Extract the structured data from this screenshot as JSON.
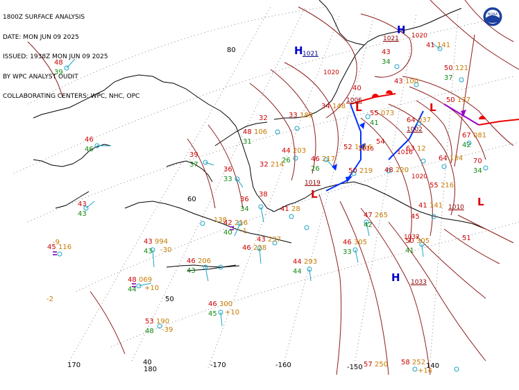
{
  "header": {
    "line1": "1800Z SURFACE ANALYSIS",
    "line2": "DATE: MON JUN 09 2025",
    "line3": "ISSUED: 1938Z MON JUN 09 2025",
    "line4": "BY WPC ANALYST OUDIT",
    "line5": "COLLABORATING CENTERS: WPC, NHC, OPC"
  },
  "graticule": {
    "lat80": "80",
    "lat60": "60",
    "lat50": "50",
    "lon170w": "-170",
    "lon160w": "-160",
    "lon150w": "-150",
    "lon140w": "-140",
    "lon180": "180",
    "lon170e": "170",
    "lon40": "40",
    "lon140": "140"
  },
  "pressure_centers": [
    {
      "type": "H",
      "value": "1021",
      "id": "h1"
    },
    {
      "type": "H",
      "value": "1021",
      "id": "h2"
    },
    {
      "type": "H",
      "value": "1033",
      "id": "h3"
    },
    {
      "type": "L",
      "value": "1006",
      "id": "l1"
    },
    {
      "type": "L",
      "value": "1019",
      "id": "l2"
    },
    {
      "type": "L",
      "value": "1002",
      "id": "l3"
    },
    {
      "type": "L",
      "value": "1010",
      "id": "l4"
    }
  ],
  "isobar_labels": [
    "1020",
    "1020",
    "1016",
    "1016",
    "1020",
    "1032"
  ],
  "stations": [
    {
      "t": "48",
      "d": "39",
      "p": ""
    },
    {
      "t": "46",
      "d": "46",
      "p": ""
    },
    {
      "t": "43",
      "d": "43",
      "p": ""
    },
    {
      "t": "45",
      "d": "",
      "p": "116"
    },
    {
      "t": "43",
      "d": "43",
      "p": "994",
      "tend": "-30"
    },
    {
      "t": "48",
      "d": "44",
      "p": "069",
      "tend": "+10"
    },
    {
      "t": "53",
      "d": "48",
      "p": "190",
      "tend": "-39"
    },
    {
      "t": "46",
      "d": "45",
      "p": "300",
      "tend": "+10"
    },
    {
      "t": "46",
      "d": "43",
      "p": "206"
    },
    {
      "t": "46",
      "d": "",
      "p": "228"
    },
    {
      "t": "43",
      "d": "",
      "p": "237"
    },
    {
      "t": "",
      "d": "",
      "p": "138"
    },
    {
      "t": "42",
      "d": "40",
      "p": "216",
      "tend": "-1"
    },
    {
      "t": "39",
      "d": "37",
      "p": ""
    },
    {
      "t": "36",
      "d": "33",
      "p": ""
    },
    {
      "t": "36",
      "d": "34",
      "p": ""
    },
    {
      "t": "38",
      "d": "",
      "p": ""
    },
    {
      "t": "41",
      "d": "",
      "p": "28"
    },
    {
      "t": "44",
      "d": "44",
      "p": "293"
    },
    {
      "t": "46",
      "d": "33",
      "p": "305"
    },
    {
      "t": "47",
      "d": "42",
      "p": "265"
    },
    {
      "t": "50",
      "d": "41",
      "p": "305"
    },
    {
      "t": "57",
      "d": "",
      "p": "250"
    },
    {
      "t": "58",
      "d": "",
      "p": "252",
      "tend": "+14"
    },
    {
      "t": "32",
      "d": "",
      "p": ""
    },
    {
      "t": "33",
      "d": "",
      "p": "185"
    },
    {
      "t": "48",
      "d": "31",
      "p": "106"
    },
    {
      "t": "44",
      "d": "26",
      "p": "203"
    },
    {
      "t": "46",
      "d": "26",
      "p": "217"
    },
    {
      "t": "50",
      "d": "",
      "p": "219"
    },
    {
      "t": "48",
      "d": "",
      "p": "220"
    },
    {
      "t": "52",
      "d": "",
      "p": "1016"
    },
    {
      "t": "54",
      "d": "",
      "p": ""
    },
    {
      "t": "55",
      "d": "41",
      "p": "073"
    },
    {
      "t": "64",
      "d": "",
      "p": "037"
    },
    {
      "t": "34",
      "d": "",
      "p": "148"
    },
    {
      "t": "40",
      "d": "",
      "p": ""
    },
    {
      "t": "43",
      "d": "34",
      "p": ""
    },
    {
      "t": "43",
      "d": "",
      "p": "100"
    },
    {
      "t": "41",
      "d": "",
      "p": "141"
    },
    {
      "t": "50",
      "d": "37",
      "p": "121"
    },
    {
      "t": "50",
      "d": "",
      "p": "137"
    },
    {
      "t": "67",
      "d": "42",
      "p": "081"
    },
    {
      "t": "70",
      "d": "34",
      "p": ""
    },
    {
      "t": "64",
      "d": "",
      "p": "134"
    },
    {
      "t": "63",
      "d": "",
      "p": "12"
    },
    {
      "t": "55",
      "d": "",
      "p": "216"
    },
    {
      "t": "45",
      "d": "",
      "p": ""
    },
    {
      "t": "51",
      "d": "",
      "p": ""
    },
    {
      "t": "41",
      "d": "",
      "p": "141"
    },
    {
      "t": "32",
      "d": "",
      "p": "214"
    },
    {
      "t": "",
      "d": "",
      "p": "-9"
    },
    {
      "t": "",
      "d": "",
      "p": "-2"
    }
  ],
  "colors": {
    "temperature": "#cc0000",
    "dewpoint": "#108a10",
    "pressure": "#c77a00",
    "isobar": "#8b1a1a",
    "coast": "#000000",
    "wind": "#1aa3c4",
    "cold_front": "#0030ff",
    "warm_front": "#ee0000",
    "occluded_front": "#9900cc",
    "high": "#0000cc",
    "low": "#dd0000"
  },
  "icons": {
    "logo": "noaa-logo-icon",
    "station": "station-circle-icon",
    "wind": "wind-barb-icon"
  }
}
